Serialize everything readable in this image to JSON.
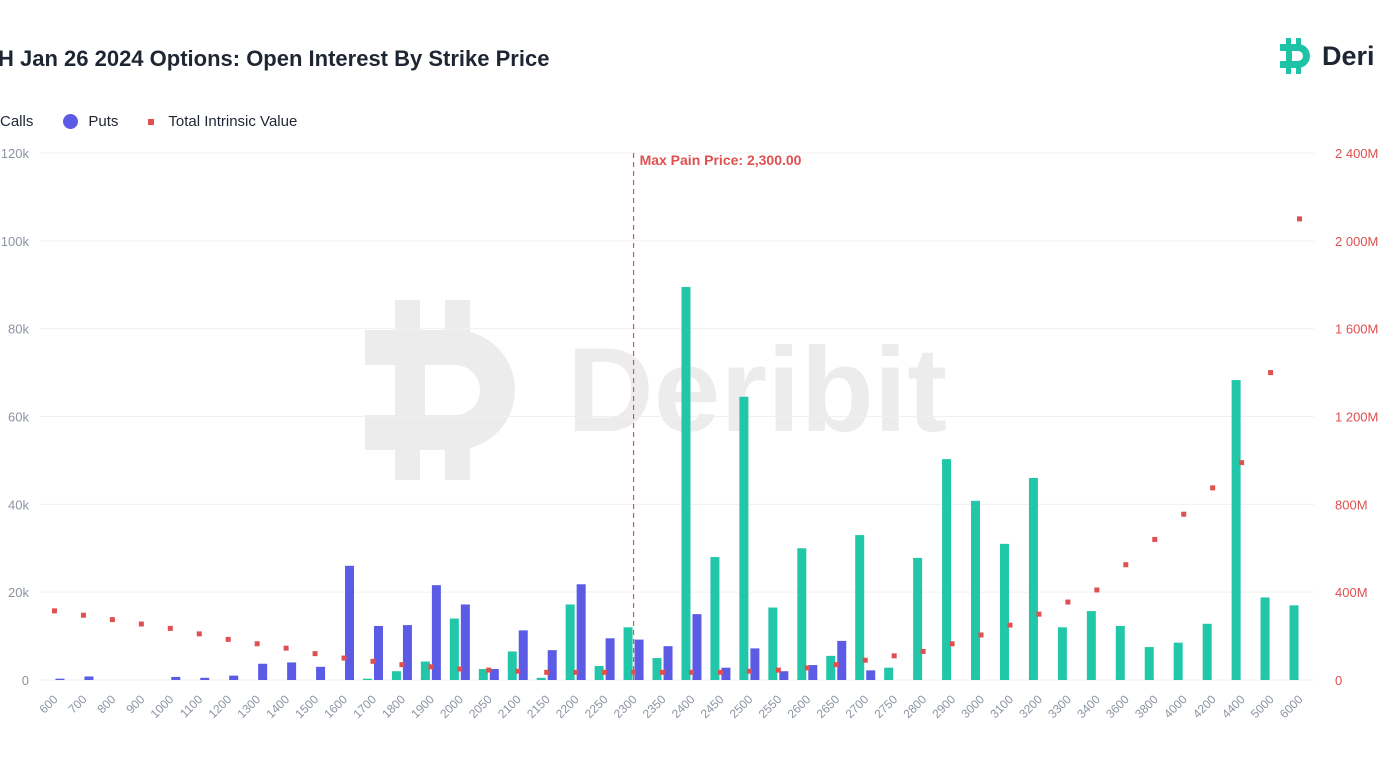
{
  "header": {
    "title": "H Jan 26 2024 Options: Open Interest By Strike Price"
  },
  "logo": {
    "text": "Deri",
    "watermark_text": "Deribit",
    "color": "#1ec3a6"
  },
  "legend": {
    "calls": "Calls",
    "puts": "Puts",
    "tiv": "Total Intrinsic Value"
  },
  "colors": {
    "calls": "#22c7a9",
    "puts": "#5b5be6",
    "tiv": "#e05050",
    "maxpain": "#e05050",
    "axisLeft": "#8b94a3",
    "axisRight": "#e05050",
    "grid": "#f0f0f0"
  },
  "chart_data": {
    "type": "bar",
    "title": "H Jan 26 2024 Options: Open Interest By Strike Price",
    "categories": [
      "600",
      "700",
      "800",
      "900",
      "1000",
      "1100",
      "1200",
      "1300",
      "1400",
      "1500",
      "1600",
      "1700",
      "1800",
      "1900",
      "2000",
      "2050",
      "2100",
      "2150",
      "2200",
      "2250",
      "2300",
      "2350",
      "2400",
      "2450",
      "2500",
      "2550",
      "2600",
      "2650",
      "2700",
      "2750",
      "2800",
      "2900",
      "3000",
      "3100",
      "3200",
      "3300",
      "3400",
      "3600",
      "3800",
      "4000",
      "4200",
      "4400",
      "5000",
      "6000"
    ],
    "series": [
      {
        "name": "Calls",
        "axis": "left",
        "values": [
          0,
          0,
          0,
          0,
          0,
          0,
          0,
          0,
          0,
          0,
          0,
          300,
          2000,
          4200,
          14000,
          2500,
          6500,
          500,
          17200,
          3200,
          12000,
          5000,
          89500,
          28000,
          64500,
          16500,
          30000,
          5500,
          33000,
          2800,
          27800,
          50300,
          40800,
          31000,
          46000,
          12000,
          15700,
          12300,
          7500,
          8500,
          12800,
          68300,
          18800,
          17000
        ]
      },
      {
        "name": "Puts",
        "axis": "left",
        "values": [
          300,
          800,
          0,
          0,
          700,
          500,
          1000,
          3700,
          4000,
          3000,
          26000,
          12300,
          12500,
          21600,
          17200,
          2500,
          11300,
          6800,
          21800,
          9500,
          9200,
          7700,
          15000,
          2800,
          7200,
          2000,
          3400,
          8900,
          2200,
          0,
          0,
          0,
          0,
          0,
          0,
          0,
          0,
          0,
          0,
          0,
          0,
          0,
          0,
          0
        ]
      },
      {
        "name": "Total Intrinsic Value",
        "axis": "right",
        "type": "scatter",
        "values": [
          315,
          295,
          275,
          255,
          235,
          210,
          185,
          165,
          145,
          120,
          100,
          85,
          70,
          60,
          50,
          45,
          40,
          35,
          35,
          35,
          35,
          35,
          35,
          35,
          40,
          45,
          55,
          70,
          90,
          110,
          130,
          165,
          205,
          250,
          300,
          355,
          410,
          525,
          640,
          755,
          875,
          990,
          1400,
          2100
        ]
      }
    ],
    "ylim_left": [
      0,
      120000
    ],
    "ylim_right": [
      0,
      2400
    ],
    "left_ticks": [
      "0",
      "20k",
      "40k",
      "60k",
      "80k",
      "100k",
      "120k"
    ],
    "right_ticks": [
      "0",
      "400M",
      "800M",
      "1 200M",
      "1 600M",
      "2 000M",
      "2 400M"
    ],
    "annotation": {
      "label": "Max Pain Price: 2,300.00",
      "category": "2300"
    },
    "grid": true,
    "legend_position": "top-left"
  }
}
